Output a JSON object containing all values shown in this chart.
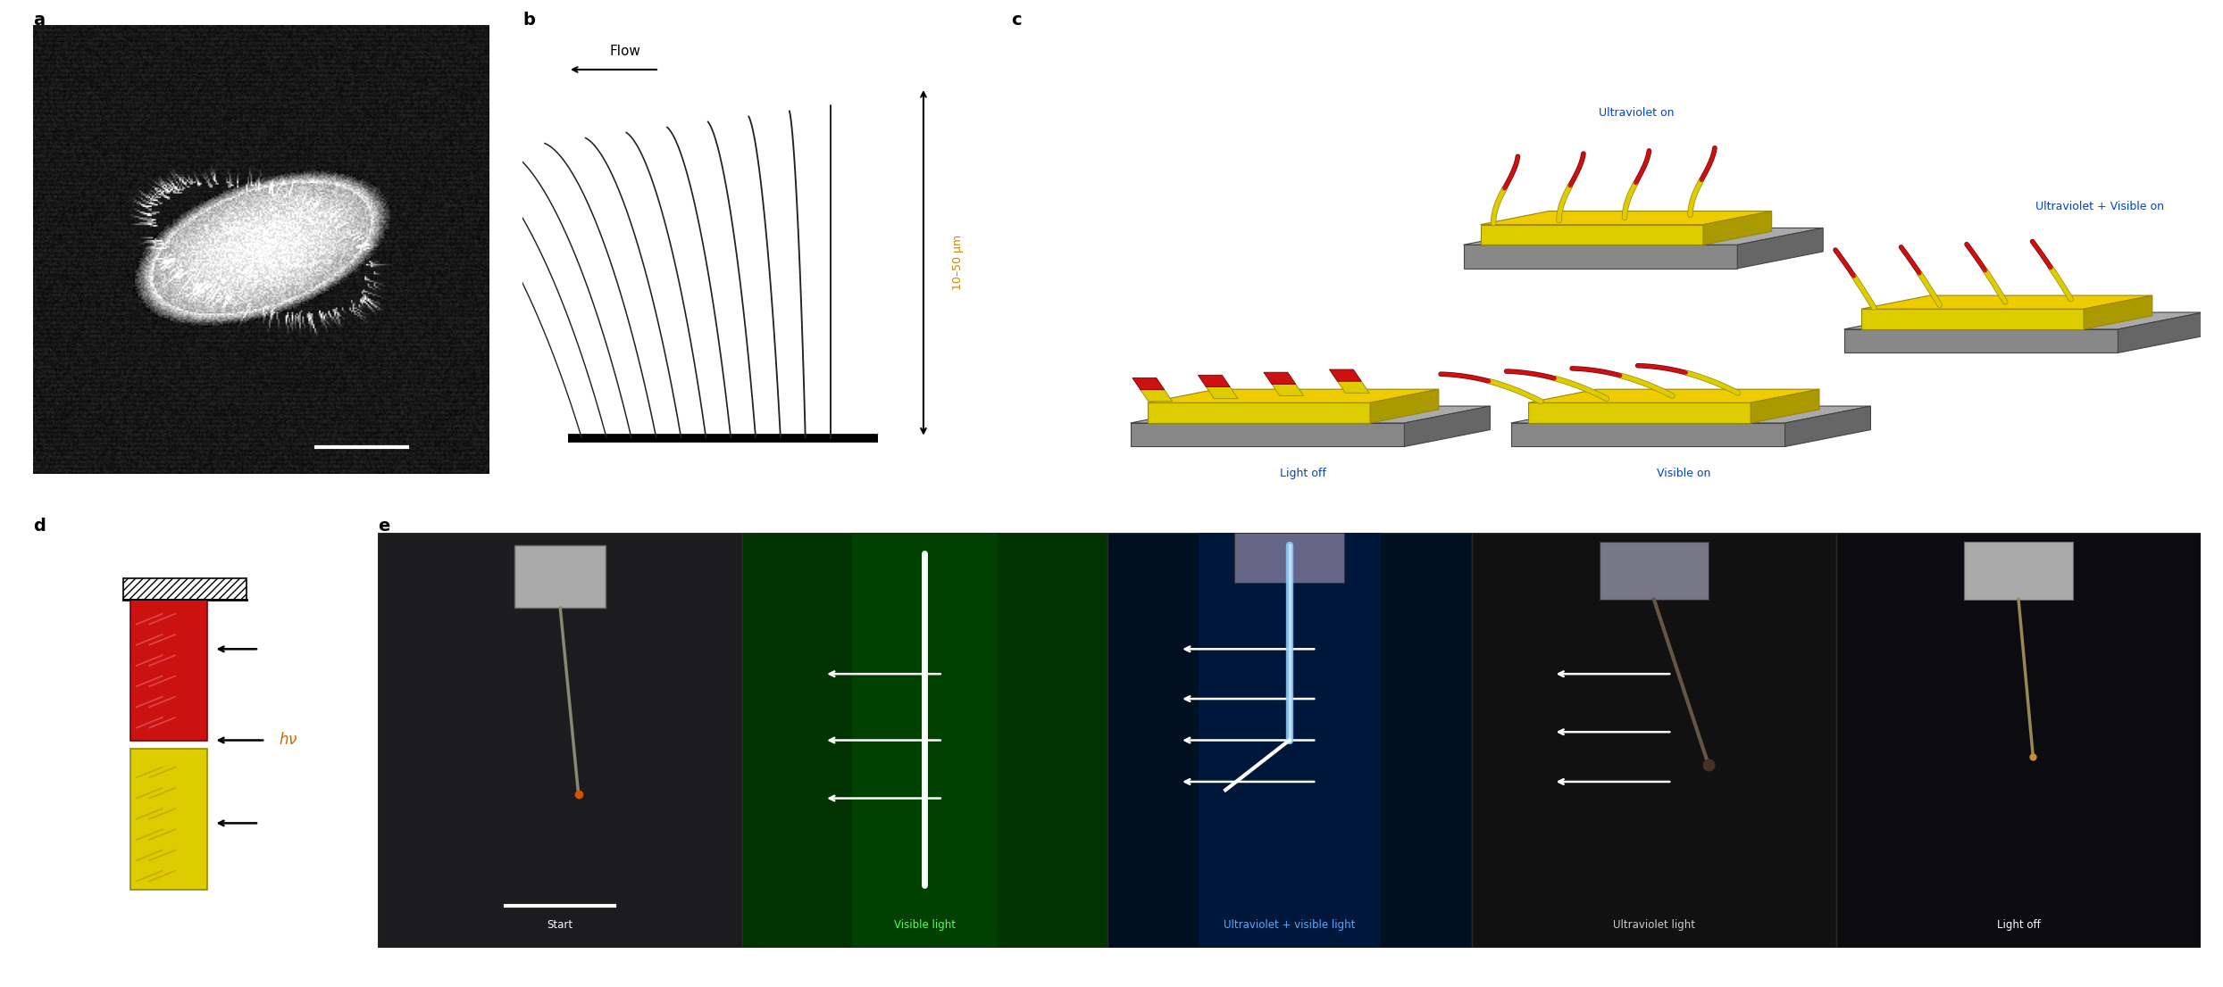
{
  "fig_width": 24.89,
  "fig_height": 11.06,
  "bg_color": "#ffffff",
  "panel_labels": [
    "a",
    "b",
    "c",
    "d",
    "e"
  ],
  "panel_label_fontsize": 14,
  "panel_label_weight": "bold",
  "flow_label": "Flow",
  "scale_label": "10–50 μm",
  "uv_on_label": "Ultraviolet on",
  "uv_vis_label": "Ultraviolet + Visible on",
  "vis_on_label": "Visible on",
  "light_off_label": "Light off",
  "photo_labels": [
    "Start",
    "Visible light",
    "Ultraviolet + visible light",
    "Ultraviolet light",
    "Light off"
  ],
  "photo_label_colors": [
    "#ffffff",
    "#55ff55",
    "#55aaff",
    "#cccccc",
    "#ffffff"
  ],
  "red_color": "#cc1111",
  "dark_red": "#770000",
  "yellow_color": "#ddcc00",
  "dark_yellow": "#998800",
  "gray_platform": "#888888",
  "gray_platform_dark": "#555555",
  "gray_platform_side": "#666666",
  "hv_color": "#cc6600",
  "cilia_bg": "#111111",
  "sem_bg": "#111111"
}
